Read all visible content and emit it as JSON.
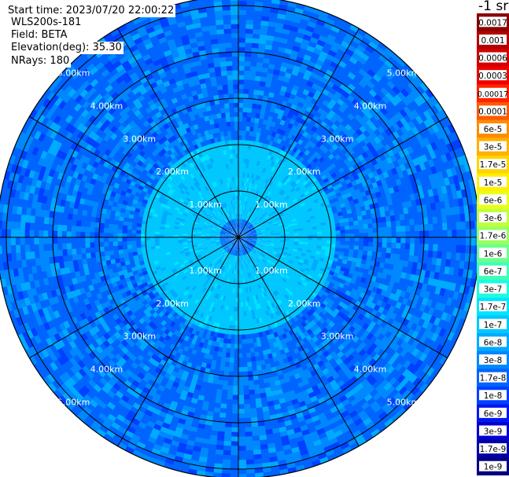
{
  "info": {
    "start_time": "Start time: 2023/07/20 22:00:22",
    "device": "WLS200s-181",
    "field": "Field: BETA",
    "elevation": "Elevation(deg): 35.30",
    "nrays": "NRays: 180"
  },
  "colorbar": {
    "unit": "-1 sr",
    "labels": [
      "0.0017",
      "0.001",
      "0.0006",
      "0.0003",
      "0.00017",
      "0.0001",
      "6e-5",
      "3e-5",
      "1.7e-5",
      "1e-5",
      "6e-6",
      "3e-6",
      "1.7e-6",
      "1e-6",
      "6e-7",
      "3e-7",
      "1.7e-7",
      "1e-7",
      "6e-8",
      "3e-8",
      "1.7e-8",
      "1e-8",
      "6e-9",
      "3e-9",
      "1.7e-9",
      "1e-9"
    ],
    "colors": [
      "#8a0000",
      "#b30000",
      "#d40000",
      "#f00000",
      "#ff2400",
      "#ff5a00",
      "#ff8c00",
      "#ffb000",
      "#ffd400",
      "#fff000",
      "#e8ff1a",
      "#c0ff3c",
      "#98ff60",
      "#6cff8c",
      "#40ffb8",
      "#1cfce0",
      "#00e4ff",
      "#00c8ff",
      "#00aaff",
      "#0088ff",
      "#0064ff",
      "#0040ff",
      "#0018f0",
      "#0000d0",
      "#0000a8",
      "#000080"
    ]
  },
  "chart_data": {
    "type": "heatmap",
    "projection": "polar-ppi",
    "field": "BETA",
    "elevation_deg": 35.3,
    "n_rays": 180,
    "range_rings_km": [
      1,
      2,
      3,
      4,
      5
    ],
    "ring_labels": [
      "1.00km",
      "2.00km",
      "3.00km",
      "4.00km",
      "5.00km"
    ],
    "max_range_km": 5.2,
    "spoke_interval_deg": 30,
    "range_bands": [
      {
        "from_km": 0,
        "to_km": 0.4,
        "value": "1.7e-8"
      },
      {
        "from_km": 0.4,
        "to_km": 1.0,
        "value": "1e-7"
      },
      {
        "from_km": 1.0,
        "to_km": 2.1,
        "value": "1e-7"
      },
      {
        "from_km": 2.1,
        "to_km": 3.3,
        "value": "1.7e-8"
      },
      {
        "from_km": 3.3,
        "to_km": 5.2,
        "value": "1.7e-8"
      }
    ]
  }
}
